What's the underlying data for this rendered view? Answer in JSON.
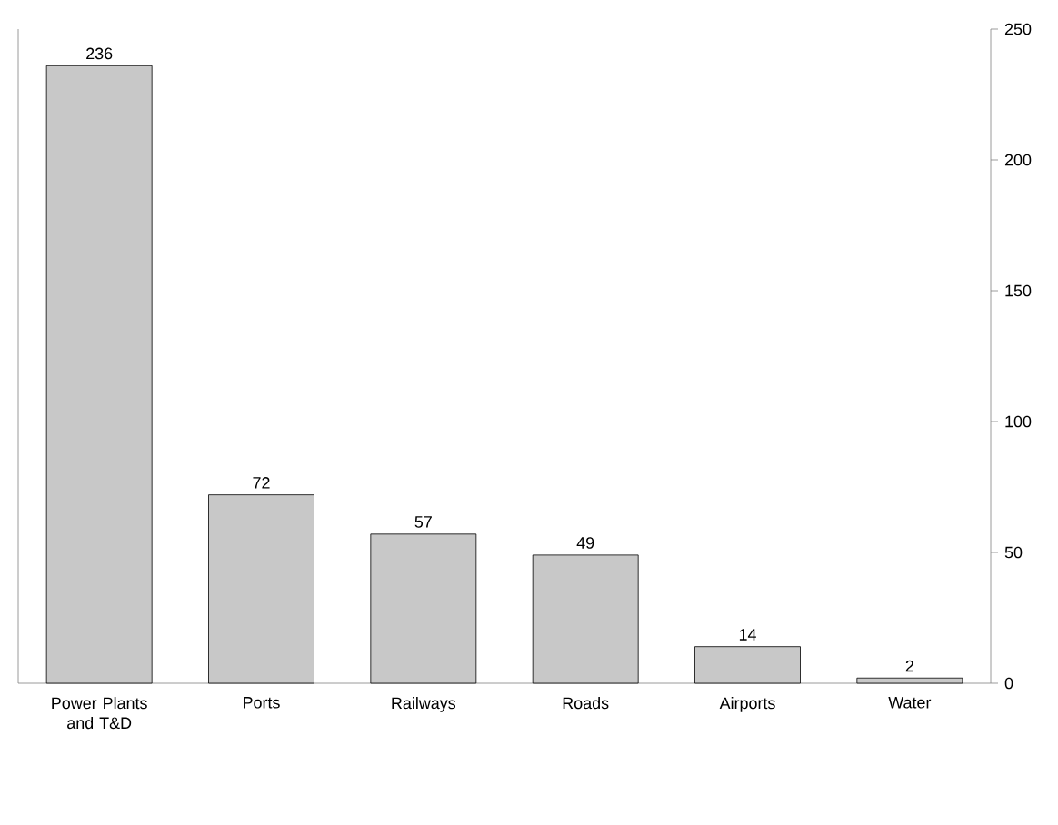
{
  "chart_data": {
    "type": "bar",
    "categories": [
      "Power Plants and T&D",
      "Ports",
      "Railways",
      "Roads",
      "Airports",
      "Water"
    ],
    "values": [
      236,
      72,
      57,
      49,
      14,
      2
    ],
    "color": "#c8c8c8",
    "ylim": [
      0,
      250
    ],
    "yticks": [
      0,
      50,
      100,
      150,
      200,
      250
    ],
    "data_labels": true
  }
}
